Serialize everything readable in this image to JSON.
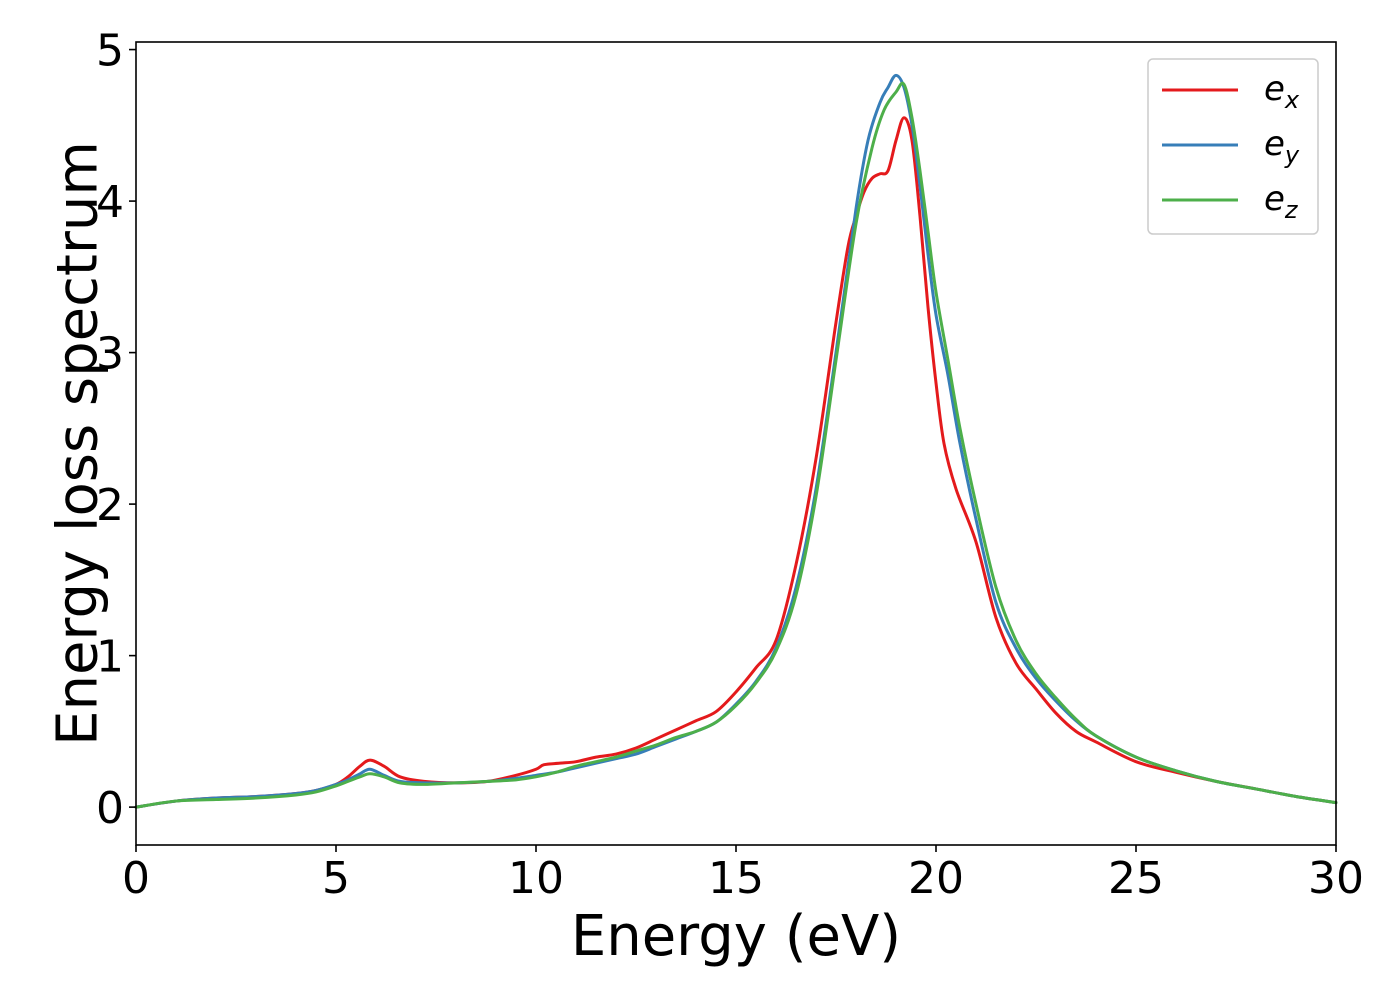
{
  "chart_data": {
    "type": "line",
    "title": "",
    "xlabel": "Energy (eV)",
    "ylabel": "Energy loss spectrum",
    "xlim": [
      0,
      30
    ],
    "ylim": [
      -0.25,
      5.05
    ],
    "xticks": [
      0,
      5,
      10,
      15,
      20,
      25,
      30
    ],
    "yticks": [
      0,
      1,
      2,
      3,
      4,
      5
    ],
    "grid": false,
    "legend_position": "top-right",
    "series": [
      {
        "name": "e_x",
        "label_base": "e",
        "label_sub": "x",
        "color": "#e41a1c",
        "x": [
          0,
          1,
          2,
          3,
          4,
          4.5,
          5,
          5.3,
          5.6,
          5.85,
          6.2,
          6.6,
          7.2,
          8,
          8.8,
          9.5,
          10,
          10.2,
          10.6,
          11,
          11.5,
          12,
          12.5,
          13,
          13.5,
          14,
          14.5,
          15,
          15.5,
          16,
          16.5,
          17,
          17.5,
          17.8,
          18,
          18.2,
          18.4,
          18.6,
          18.8,
          19,
          19.2,
          19.4,
          19.6,
          19.8,
          20,
          20.2,
          20.5,
          21,
          21.5,
          22,
          22.5,
          23,
          23.5,
          24,
          25,
          26,
          27,
          28,
          29,
          30
        ],
        "y": [
          0,
          0.04,
          0.06,
          0.07,
          0.09,
          0.11,
          0.15,
          0.2,
          0.27,
          0.31,
          0.27,
          0.2,
          0.17,
          0.16,
          0.17,
          0.21,
          0.25,
          0.28,
          0.29,
          0.3,
          0.33,
          0.35,
          0.39,
          0.45,
          0.51,
          0.57,
          0.63,
          0.76,
          0.92,
          1.1,
          1.6,
          2.3,
          3.2,
          3.7,
          3.9,
          4.06,
          4.15,
          4.18,
          4.2,
          4.4,
          4.55,
          4.4,
          3.9,
          3.3,
          2.8,
          2.4,
          2.1,
          1.75,
          1.25,
          0.95,
          0.78,
          0.62,
          0.5,
          0.43,
          0.3,
          0.23,
          0.17,
          0.12,
          0.07,
          0.03
        ]
      },
      {
        "name": "e_y",
        "label_base": "e",
        "label_sub": "y",
        "color": "#377eb8",
        "x": [
          0,
          1,
          2,
          3,
          4,
          4.5,
          5,
          5.3,
          5.6,
          5.85,
          6.2,
          6.6,
          7.2,
          8,
          8.8,
          9.5,
          10,
          10.5,
          11,
          11.5,
          12,
          12.5,
          13,
          13.5,
          14,
          14.5,
          15,
          15.5,
          16,
          16.5,
          17,
          17.5,
          18,
          18.3,
          18.6,
          18.8,
          19,
          19.2,
          19.4,
          19.6,
          19.8,
          20,
          20.3,
          20.6,
          21,
          21.5,
          22,
          22.5,
          23,
          23.5,
          24,
          25,
          26,
          27,
          28,
          29,
          30
        ],
        "y": [
          0,
          0.04,
          0.06,
          0.07,
          0.09,
          0.11,
          0.15,
          0.18,
          0.22,
          0.25,
          0.21,
          0.17,
          0.16,
          0.16,
          0.17,
          0.19,
          0.21,
          0.23,
          0.26,
          0.29,
          0.32,
          0.35,
          0.4,
          0.45,
          0.5,
          0.56,
          0.68,
          0.83,
          1.05,
          1.45,
          2.1,
          3.0,
          3.95,
          4.4,
          4.65,
          4.75,
          4.83,
          4.75,
          4.5,
          4.1,
          3.65,
          3.25,
          2.85,
          2.4,
          1.9,
          1.35,
          1.05,
          0.85,
          0.7,
          0.57,
          0.47,
          0.33,
          0.24,
          0.17,
          0.12,
          0.07,
          0.03
        ]
      },
      {
        "name": "e_z",
        "label_base": "e",
        "label_sub": "z",
        "color": "#4daf4a",
        "x": [
          0,
          1,
          2,
          3,
          4,
          4.5,
          5,
          5.3,
          5.6,
          5.85,
          6.2,
          6.6,
          7.2,
          8,
          8.8,
          9.5,
          10,
          10.5,
          11,
          11.5,
          12,
          12.5,
          13,
          13.5,
          14,
          14.5,
          15,
          15.5,
          16,
          16.5,
          17,
          17.5,
          18,
          18.4,
          18.7,
          19,
          19.2,
          19.4,
          19.6,
          19.8,
          20,
          20.3,
          20.6,
          21,
          21.5,
          22,
          22.5,
          23,
          23.5,
          24,
          25,
          26,
          27,
          28,
          29,
          30
        ],
        "y": [
          0,
          0.04,
          0.05,
          0.06,
          0.08,
          0.1,
          0.14,
          0.17,
          0.2,
          0.22,
          0.2,
          0.16,
          0.15,
          0.16,
          0.17,
          0.18,
          0.2,
          0.23,
          0.27,
          0.3,
          0.33,
          0.37,
          0.41,
          0.46,
          0.5,
          0.56,
          0.67,
          0.82,
          1.03,
          1.4,
          2.05,
          2.95,
          3.85,
          4.35,
          4.6,
          4.72,
          4.77,
          4.55,
          4.2,
          3.8,
          3.4,
          2.95,
          2.5,
          2.0,
          1.45,
          1.1,
          0.88,
          0.72,
          0.58,
          0.47,
          0.33,
          0.24,
          0.17,
          0.12,
          0.07,
          0.03
        ]
      }
    ]
  }
}
